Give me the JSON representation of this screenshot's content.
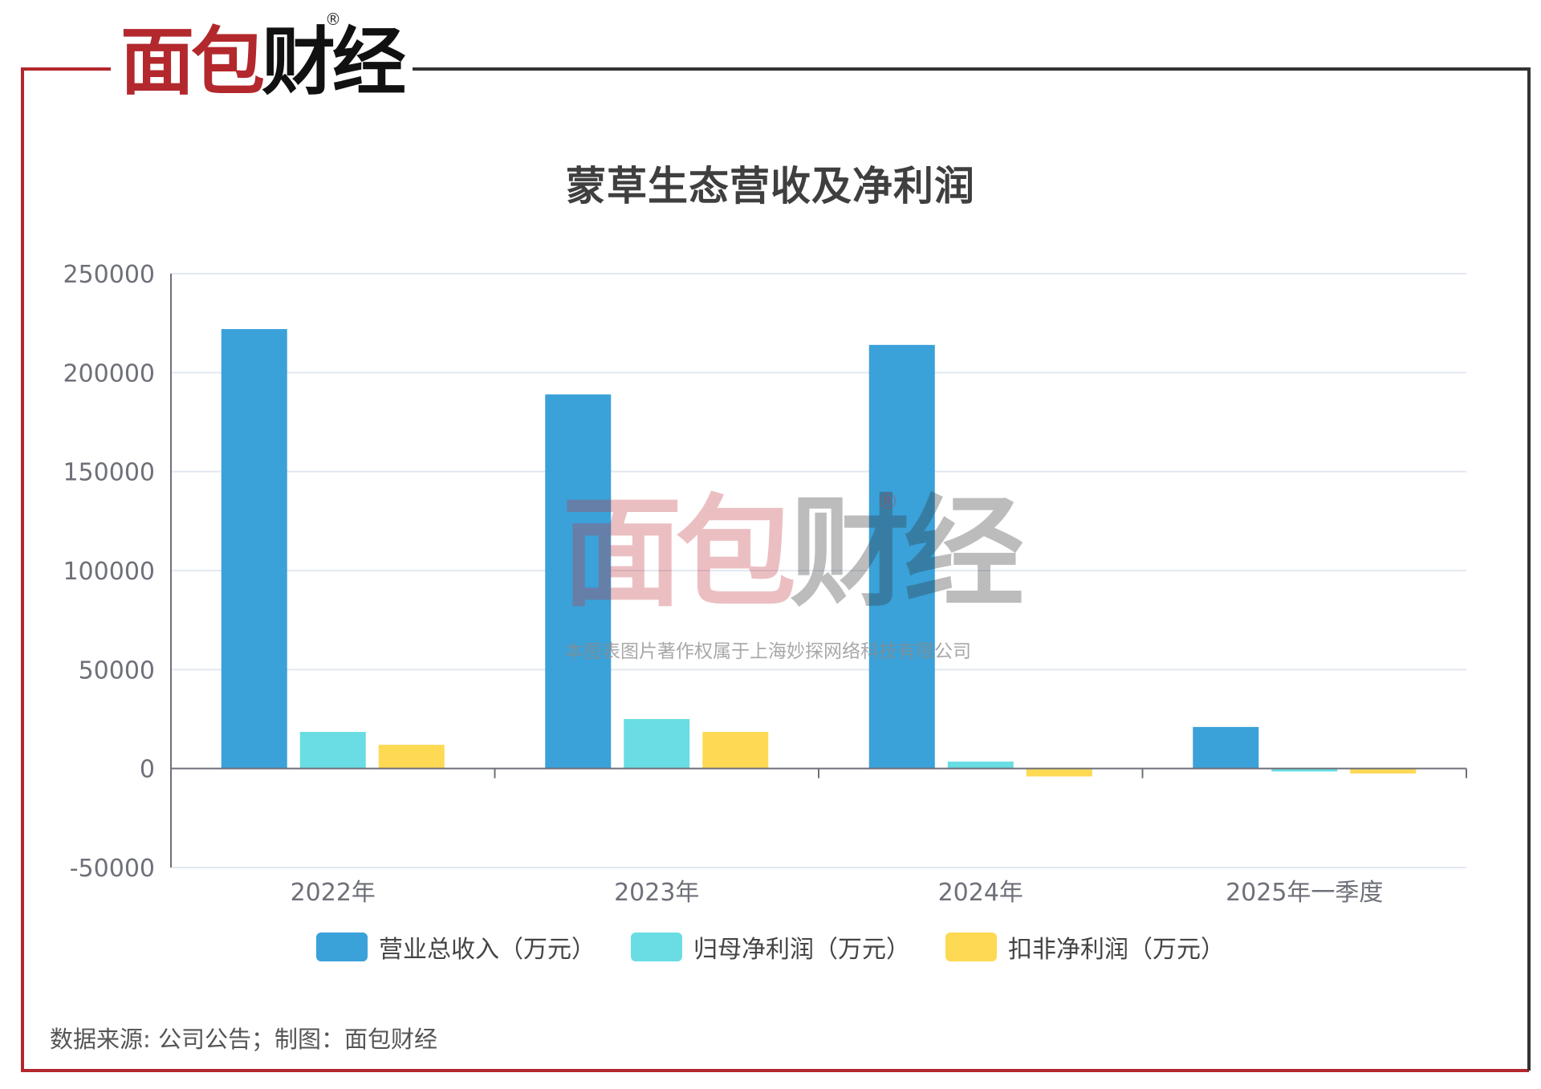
{
  "brand": {
    "part1": "面包",
    "part2": "财经",
    "reg": "®"
  },
  "watermark": {
    "logo1": "面包",
    "logo2": "财经",
    "reg": "®",
    "text": "本图表图片著作权属于上海妙探网络科技有限公司"
  },
  "source": "数据来源: 公司公告；制图：面包财经",
  "colors": {
    "frame_red": "#b3282d",
    "frame_dark": "#333333",
    "revenue": "#3aa1d9",
    "parent_net": "#69dde3",
    "deducted_net": "#fed954"
  },
  "chart_data": {
    "type": "bar",
    "title": "蒙草生态营收及净利润",
    "categories": [
      "2022年",
      "2023年",
      "2024年",
      "2025年一季度"
    ],
    "series": [
      {
        "name": "营业总收入（万元）",
        "color": "#3aa1d9",
        "values": [
          222000,
          189000,
          214000,
          21000
        ]
      },
      {
        "name": "归母净利润（万元）",
        "color": "#69dde3",
        "values": [
          18500,
          25000,
          3500,
          -1500
        ]
      },
      {
        "name": "扣非净利润（万元）",
        "color": "#fed954",
        "values": [
          12000,
          18500,
          -4000,
          -2500
        ]
      }
    ],
    "ylim": [
      -50000,
      250000
    ],
    "yticks": [
      -50000,
      0,
      50000,
      100000,
      150000,
      200000,
      250000
    ],
    "ytick_labels": [
      "-50000",
      "0",
      "50000",
      "100000",
      "150000",
      "200000",
      "250000"
    ],
    "grid": true,
    "legend": "bottom"
  }
}
